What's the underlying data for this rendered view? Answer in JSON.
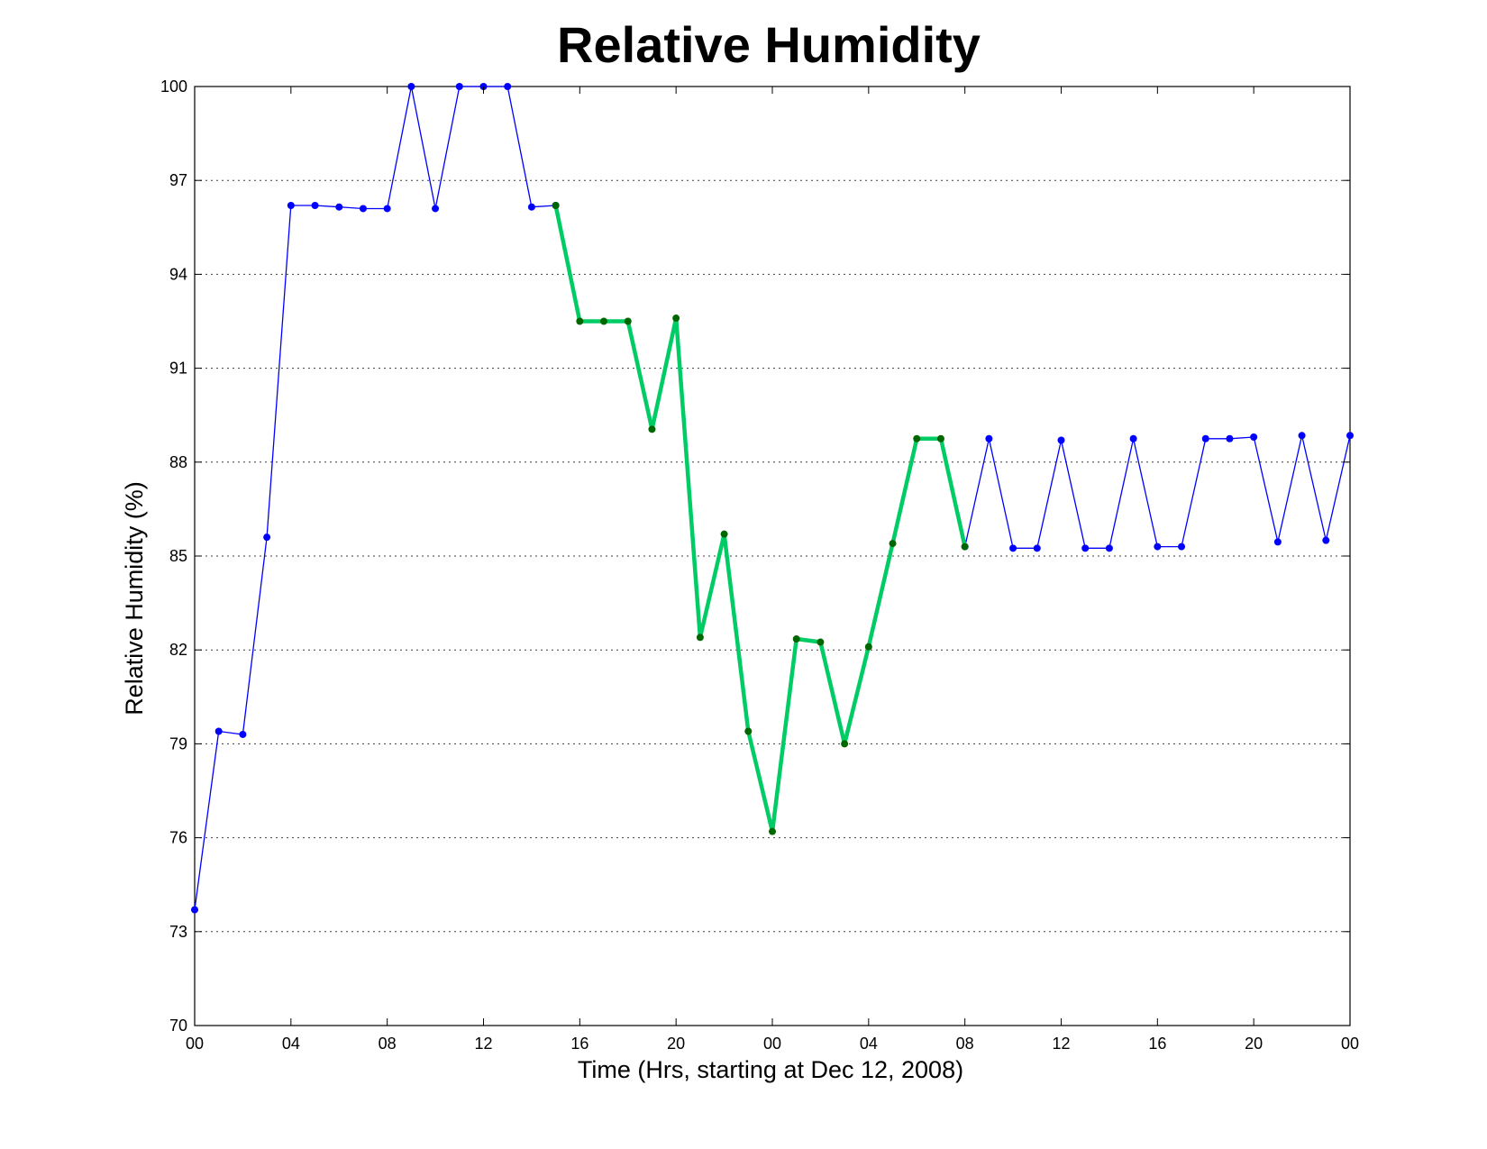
{
  "chart_data": {
    "type": "line",
    "title": "Relative Humidity",
    "xlabel": "Time (Hrs, starting at Dec 12, 2008)",
    "ylabel": "Relative Humidity (%)",
    "ylim": [
      70,
      100
    ],
    "xlim": [
      0,
      48
    ],
    "grid": "horizontal dotted",
    "x_ticks": [
      {
        "x": 0,
        "label": "00"
      },
      {
        "x": 4,
        "label": "04"
      },
      {
        "x": 8,
        "label": "08"
      },
      {
        "x": 12,
        "label": "12"
      },
      {
        "x": 16,
        "label": "16"
      },
      {
        "x": 20,
        "label": "20"
      },
      {
        "x": 24,
        "label": "00"
      },
      {
        "x": 28,
        "label": "04"
      },
      {
        "x": 32,
        "label": "08"
      },
      {
        "x": 36,
        "label": "12"
      },
      {
        "x": 40,
        "label": "16"
      },
      {
        "x": 44,
        "label": "20"
      },
      {
        "x": 48,
        "label": "00"
      }
    ],
    "y_ticks": [
      70,
      73,
      76,
      79,
      82,
      85,
      88,
      91,
      94,
      97,
      100
    ],
    "x": [
      0,
      1,
      2,
      3,
      4,
      5,
      6,
      7,
      8,
      9,
      10,
      11,
      12,
      13,
      14,
      15,
      16,
      17,
      18,
      19,
      20,
      21,
      22,
      23,
      24,
      25,
      26,
      27,
      28,
      29,
      30,
      31,
      32,
      33,
      34,
      35,
      36,
      37,
      38,
      39,
      40,
      41,
      42,
      43,
      44,
      45,
      46,
      47,
      48
    ],
    "series": [
      {
        "color": "#0000ff",
        "x": [
          0,
          1,
          2,
          3,
          4,
          5,
          6,
          7,
          8,
          9,
          10,
          11,
          12,
          13,
          14,
          15,
          32,
          33,
          34,
          35,
          36,
          37,
          38,
          39,
          40,
          41,
          42,
          43,
          44,
          45,
          46,
          47,
          48
        ],
        "values": [
          73.7,
          79.4,
          79.3,
          85.6,
          96.2,
          96.2,
          96.15,
          96.1,
          96.1,
          100,
          96.1,
          100,
          100,
          100,
          96.15,
          96.2,
          85.3,
          88.75,
          85.25,
          85.25,
          88.7,
          85.25,
          85.25,
          88.75,
          85.3,
          85.3,
          88.75,
          88.75,
          88.8,
          85.45,
          88.85,
          85.5,
          88.85
        ]
      },
      {
        "color": "#00cc66",
        "marker_color": "#006600",
        "x": [
          15,
          16,
          17,
          18,
          19,
          20,
          21,
          22,
          23,
          24,
          25,
          26,
          27,
          28,
          29,
          30,
          31,
          32
        ],
        "values": [
          96.2,
          92.5,
          92.5,
          92.5,
          89.05,
          92.6,
          82.4,
          85.7,
          79.4,
          76.2,
          82.35,
          82.25,
          79.0,
          82.1,
          85.4,
          88.75,
          88.75,
          85.3
        ]
      }
    ]
  }
}
